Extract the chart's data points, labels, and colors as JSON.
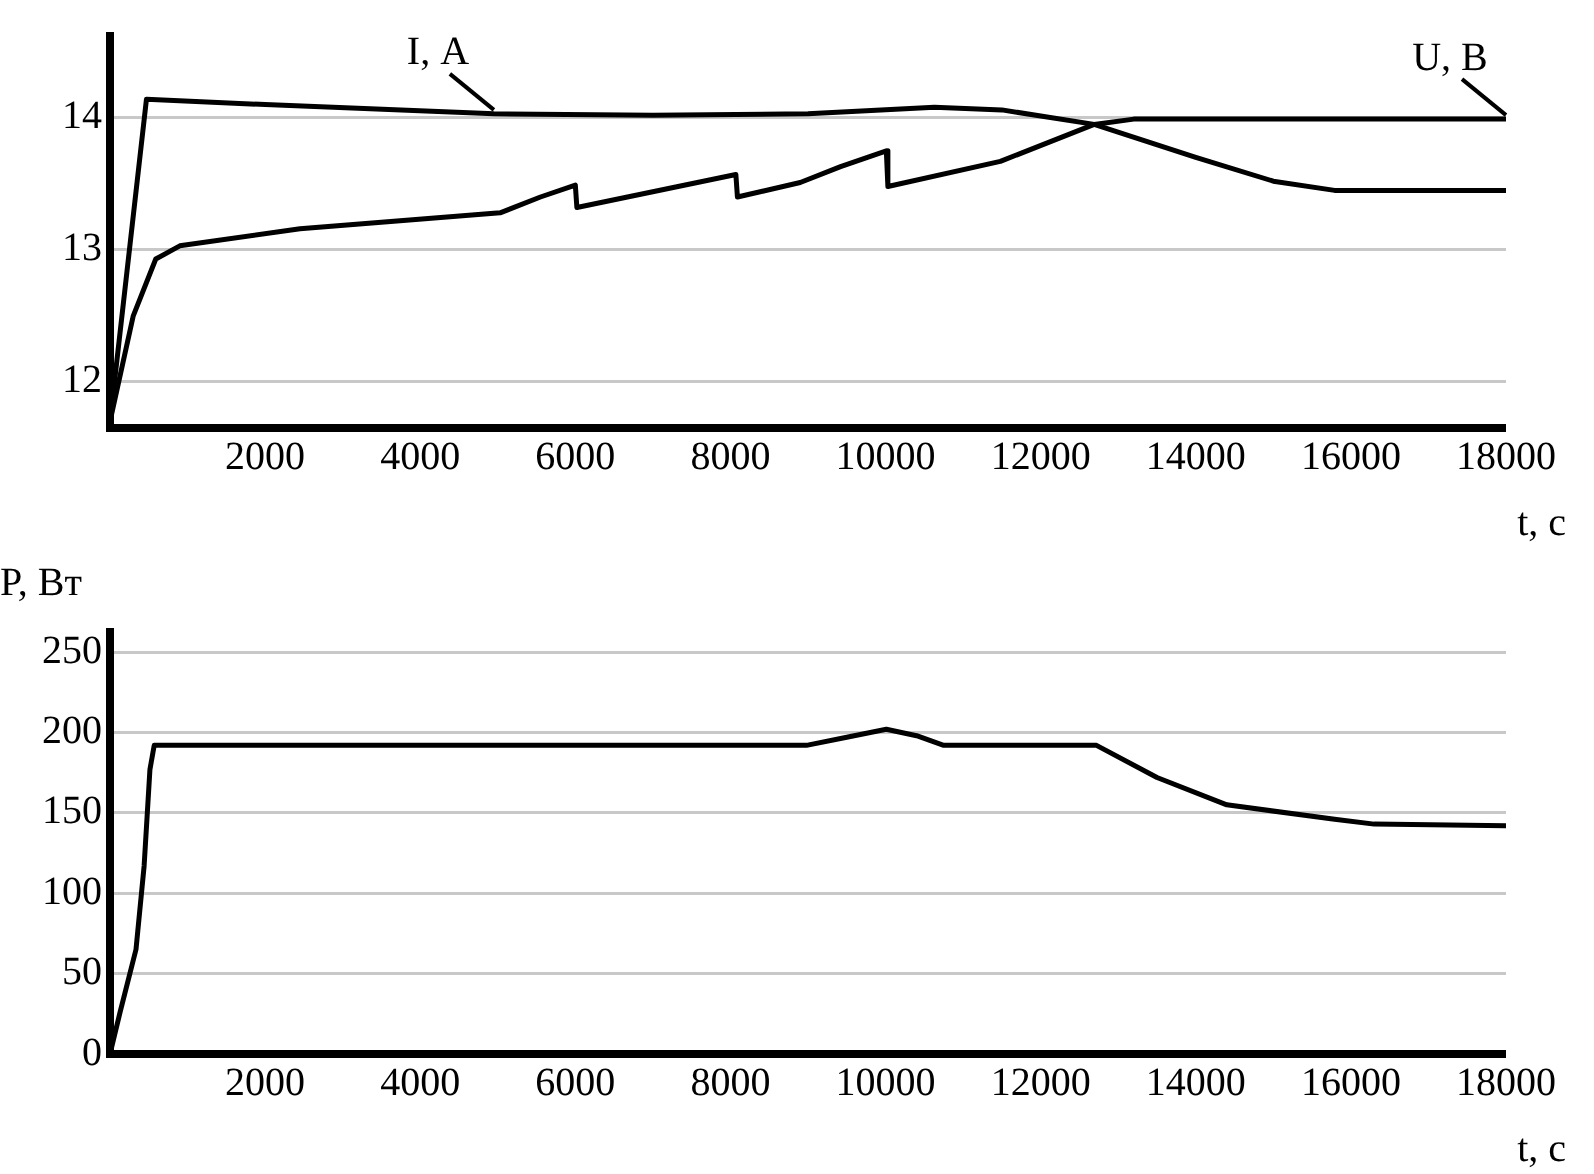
{
  "chart_data": [
    {
      "type": "line",
      "xlabel": "t, с",
      "xlim": [
        0,
        18000
      ],
      "xticks": [
        2000,
        4000,
        6000,
        8000,
        10000,
        12000,
        14000,
        16000,
        18000
      ],
      "ylim": [
        11.65,
        14.65
      ],
      "yticks": [
        12,
        13,
        14
      ],
      "grid": "y",
      "legend": false,
      "marker": "none",
      "line_style": "solid",
      "series": [
        {
          "name": "I, А",
          "color": "#000000",
          "x": [
            0,
            470,
            2000,
            4950,
            7000,
            9000,
            10630,
            11500,
            12690,
            14000,
            15000,
            15790,
            18000
          ],
          "values": [
            11.7,
            14.14,
            14.1,
            14.03,
            14.02,
            14.03,
            14.08,
            14.06,
            13.95,
            13.7,
            13.52,
            13.45,
            13.45
          ]
        },
        {
          "name": "U, В",
          "color": "#000000",
          "x": [
            0,
            300,
            590,
            900,
            2450,
            3740,
            5030,
            5550,
            6000,
            6020,
            8070,
            8090,
            8900,
            9420,
            10010,
            10030,
            11480,
            12690,
            13200,
            18000
          ],
          "values": [
            11.7,
            12.5,
            12.93,
            13.03,
            13.16,
            13.22,
            13.28,
            13.4,
            13.49,
            13.32,
            13.57,
            13.4,
            13.51,
            13.63,
            13.75,
            13.48,
            13.67,
            13.95,
            13.99,
            13.99
          ]
        }
      ]
    },
    {
      "type": "line",
      "xlabel": "t, с",
      "ylabel": "P, Вт",
      "xlim": [
        0,
        18000
      ],
      "xticks": [
        2000,
        4000,
        6000,
        8000,
        10000,
        12000,
        14000,
        16000,
        18000
      ],
      "ylim": [
        0,
        265
      ],
      "yticks": [
        0,
        50,
        100,
        150,
        200,
        250
      ],
      "grid": "y",
      "legend": false,
      "marker": "none",
      "line_style": "solid",
      "series": [
        {
          "color": "#000000",
          "x": [
            0,
            130,
            335,
            440,
            515,
            570,
            8980,
            9500,
            10010,
            10400,
            10750,
            12720,
            13500,
            14400,
            15790,
            16300,
            18000
          ],
          "values": [
            0,
            26,
            65,
            117,
            177,
            192,
            192,
            197,
            202,
            198,
            192,
            192,
            172,
            155,
            146,
            143,
            142
          ]
        }
      ]
    }
  ]
}
